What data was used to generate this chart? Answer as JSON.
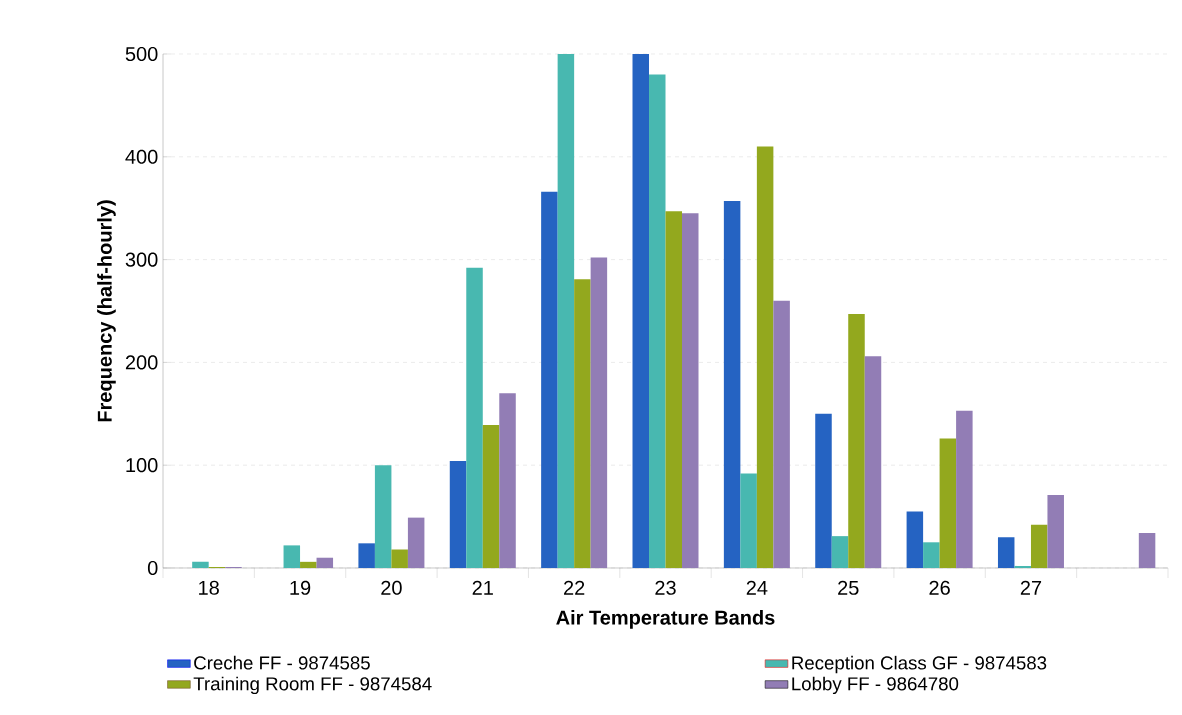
{
  "chart_data": {
    "type": "bar",
    "xlabel": "Air Temperature Bands",
    "ylabel": "Frequency (half-hourly)",
    "categories": [
      "18",
      "19",
      "20",
      "21",
      "22",
      "23",
      "24",
      "25",
      "26",
      "27",
      null
    ],
    "series": [
      {
        "name": "Creche FF - 9874585",
        "color": "#2563c2",
        "values": [
          0,
          0,
          24,
          104,
          366,
          500,
          357,
          150,
          55,
          30,
          null
        ]
      },
      {
        "name": "Reception Class GF - 9874583",
        "color": "#48b8b0",
        "values": [
          6,
          22,
          100,
          292,
          500,
          480,
          92,
          31,
          25,
          2,
          null
        ]
      },
      {
        "name": "Training Room FF - 9874584",
        "color": "#93a81e",
        "values": [
          1,
          6,
          18,
          139,
          281,
          347,
          410,
          247,
          126,
          42,
          null
        ]
      },
      {
        "name": "Lobby FF - 9864780",
        "color": "#927db5",
        "values": [
          1,
          10,
          49,
          170,
          302,
          345,
          260,
          206,
          153,
          71,
          34
        ]
      }
    ],
    "ylim": [
      0,
      500
    ],
    "yticks": [
      0,
      100,
      200,
      300,
      400,
      500
    ],
    "grid": "y",
    "legend": "bottom"
  }
}
